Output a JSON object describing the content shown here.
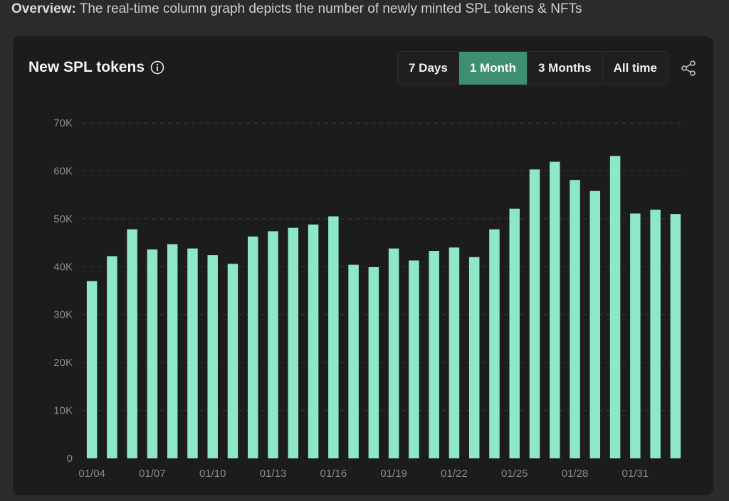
{
  "overview": {
    "label": "Overview:",
    "text": " The real-time column graph depicts the number of newly minted SPL tokens & NFTs"
  },
  "card": {
    "title": "New SPL tokens",
    "info_icon": "info-circle-icon",
    "share_icon": "share-icon",
    "tabs": [
      {
        "label": "7 Days",
        "active": false
      },
      {
        "label": "1 Month",
        "active": true
      },
      {
        "label": "3 Months",
        "active": false
      },
      {
        "label": "All time",
        "active": false
      }
    ]
  },
  "colors": {
    "bar": "#8ee8c6",
    "active_tab": "#3f8f6e",
    "card_bg": "#1c1c1c",
    "page_bg": "#2b2b2b"
  },
  "chart_data": {
    "type": "bar",
    "title": "New SPL tokens",
    "xlabel": "",
    "ylabel": "",
    "ylim": [
      0,
      70000
    ],
    "grid": true,
    "y_ticks": [
      "0",
      "10K",
      "20K",
      "30K",
      "40K",
      "50K",
      "60K",
      "70K"
    ],
    "x_tick_labels": [
      "01/04",
      "01/07",
      "01/10",
      "01/13",
      "01/16",
      "01/19",
      "01/22",
      "01/25",
      "01/28",
      "01/31"
    ],
    "categories": [
      "01/04",
      "01/05",
      "01/06",
      "01/07",
      "01/08",
      "01/09",
      "01/10",
      "01/11",
      "01/12",
      "01/13",
      "01/14",
      "01/15",
      "01/16",
      "01/17",
      "01/18",
      "01/19",
      "01/20",
      "01/21",
      "01/22",
      "01/23",
      "01/24",
      "01/25",
      "01/26",
      "01/27",
      "01/28",
      "01/29",
      "01/30",
      "01/31",
      "02/01",
      "02/02"
    ],
    "values": [
      37000,
      42200,
      47800,
      43600,
      44700,
      43800,
      42400,
      40600,
      46300,
      47400,
      48100,
      48800,
      50500,
      40400,
      39900,
      43800,
      41300,
      43300,
      44000,
      42000,
      47800,
      52100,
      60300,
      61900,
      58100,
      55800,
      63100,
      51100,
      51900,
      51000
    ]
  }
}
